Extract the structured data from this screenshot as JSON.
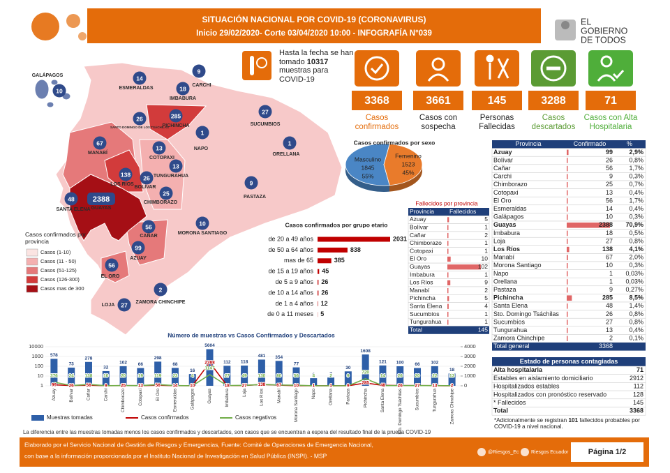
{
  "header": {
    "title": "SITUACIÓN NACIONAL POR  COVID-19 (CORONAVIRUS)",
    "subtitle": "Inicio 29/02/2020- Corte 03/04/2020 10:00  - INFOGRAFÍA N°039",
    "logo": [
      "EL",
      "GOBIERNO",
      "DE TODOS"
    ]
  },
  "tests": {
    "before": "Hasta la fecha se han tomado",
    "count": 10317,
    "after": "muestras para COVID-19"
  },
  "stats": [
    {
      "value": 3368,
      "label": "Casos confirmados",
      "color": "#e46c0a",
      "label_color": "#e46c0a"
    },
    {
      "value": 3661,
      "label": "Casos con sospecha",
      "color": "#e46c0a",
      "label_color": "#222222"
    },
    {
      "value": 145,
      "label": "Personas Fallecidas",
      "color": "#e46c0a",
      "label_color": "#222222"
    },
    {
      "value": 3288,
      "label": "Casos descartados",
      "color": "#5b9b34",
      "label_color": "#5b9b34"
    },
    {
      "value": 71,
      "label": "Casos con Alta Hospitalaria",
      "color": "#4fae3a",
      "label_color": "#4fae3a"
    }
  ],
  "map": {
    "provinces": [
      {
        "name": "GALÁPAGOS",
        "value": 10
      },
      {
        "name": "ESMERALDAS",
        "value": 14
      },
      {
        "name": "CARCHI",
        "value": 9
      },
      {
        "name": "IMBABURA",
        "value": 18
      },
      {
        "name": "SUCUMBIOS",
        "value": 27
      },
      {
        "name": "PICHINCHA",
        "value": 285
      },
      {
        "name": "SANTO DOMINGO DE LOS TSÁCHILAS",
        "value": 26
      },
      {
        "name": "MANABÍ",
        "value": 67
      },
      {
        "name": "NAPO",
        "value": 1
      },
      {
        "name": "ORELLANA",
        "value": 1
      },
      {
        "name": "COTOPAXI",
        "value": 13
      },
      {
        "name": "TUNGURAHUA",
        "value": 13
      },
      {
        "name": "LOS RÍOS",
        "value": 138
      },
      {
        "name": "BOLÍVAR",
        "value": 26
      },
      {
        "name": "SANTA ELENA",
        "value": 48
      },
      {
        "name": "GUAYAS",
        "value": 2388
      },
      {
        "name": "CHIMBORAZO",
        "value": 25
      },
      {
        "name": "PASTAZA",
        "value": 9
      },
      {
        "name": "CAÑAR",
        "value": 56
      },
      {
        "name": "MORONA SANTIAGO",
        "value": 10
      },
      {
        "name": "AZUAY",
        "value": 99
      },
      {
        "name": "EL ORO",
        "value": 56
      },
      {
        "name": "LOJA",
        "value": 27
      },
      {
        "name": "ZAMORA CHINCHIPE",
        "value": 2
      }
    ],
    "legend": {
      "title": "Casos confirmados por provincia",
      "items": [
        {
          "label": "Casos (1-10)",
          "color": "#fbe4e2"
        },
        {
          "label": "Casos (11 - 50)",
          "color": "#f4b0b0"
        },
        {
          "label": "Casos (51-125)",
          "color": "#e5797a"
        },
        {
          "label": "Casos (126-300)",
          "color": "#d23b3b"
        },
        {
          "label": "Casos mas de 300",
          "color": "#a50f15"
        }
      ]
    }
  },
  "chart_data": [
    {
      "type": "pie",
      "title": "Casos confirmados por sexo",
      "categories": [
        "Masculino",
        "Femenino"
      ],
      "values": [
        1845,
        1523
      ],
      "percent_labels": [
        "55%",
        "45%"
      ],
      "colors": [
        "#4a86c5",
        "#e97b2b"
      ]
    },
    {
      "type": "hbar",
      "title": "Casos confirmados por grupo etario",
      "categories": [
        "de 20 a 49 años",
        "de 50 a 64 años",
        "mas de 65",
        "de 15 a 19 años",
        "de 5 a 9 años",
        "de 10 a 14 años",
        "de 1 a 4 años",
        "de 0 a 11 meses"
      ],
      "values": [
        2031,
        838,
        385,
        45,
        26,
        26,
        12,
        5
      ],
      "color": "#c00000"
    },
    {
      "type": "combo",
      "title": "Número de muestras vs Casos Confirmados y Descartados",
      "categories": [
        "Azuay",
        "Bolívar",
        "Cañar",
        "Carchi",
        "Chimborazo",
        "Cotopaxi",
        "El Oro",
        "Esmeraldas",
        "Galápagos",
        "Guayas",
        "Imbabura",
        "Loja",
        "Los Ríos",
        "Manabí",
        "Morona Santiago",
        "Napo",
        "Orellana",
        "Pastaza",
        "Pichincha",
        "Santa Elena",
        "Sto. Domingo Tsáchilas",
        "Sucumbíos",
        "Tungurahua",
        "Zamora Chinchipe"
      ],
      "series": [
        {
          "name": "Muestras tomadas",
          "type": "bar",
          "color": "#2e5fa8",
          "values": [
            578,
            73,
            278,
            32,
            102,
            66,
            298,
            68,
            16,
            5604,
            112,
            118,
            481,
            354,
            77,
            6,
            7,
            30,
            1608,
            121,
            100,
            66,
            102,
            18
          ]
        },
        {
          "name": "Casos confirmados",
          "type": "line",
          "axis": "y2",
          "color": "#c00000",
          "values": [
            99,
            26,
            56,
            9,
            25,
            13,
            56,
            14,
            10,
            2388,
            18,
            27,
            138,
            67,
            10,
            1,
            1,
            9,
            285,
            48,
            26,
            27,
            13,
            2
          ]
        },
        {
          "name": "Casos negativos",
          "type": "line",
          "axis": "y2",
          "color": "#70ad47",
          "values": [
            376,
            24,
            138,
            10,
            20,
            19,
            119,
            23,
            4,
            1147,
            27,
            49,
            130,
            80,
            56,
            4,
            2,
            9,
            720,
            14,
            26,
            20,
            22,
            13
          ]
        }
      ],
      "ylog": true,
      "ylim": [
        1,
        10000
      ],
      "yticks": [
        1,
        10,
        100,
        1000,
        10000
      ],
      "y2lim": [
        0,
        4000
      ],
      "y2ticks": [
        0,
        1000,
        2000,
        3000,
        4000
      ]
    }
  ],
  "deaths_table": {
    "title": "Fallecidos por provincia",
    "columns": [
      "Provincia",
      "Fallecidos"
    ],
    "rows": [
      [
        "Azuay",
        5
      ],
      [
        "Bolívar",
        1
      ],
      [
        "Cañar",
        2
      ],
      [
        "Chimborazo",
        1
      ],
      [
        "Cotopaxi",
        1
      ],
      [
        "El Oro",
        10
      ],
      [
        "Guayas",
        102
      ],
      [
        "Imbabura",
        1
      ],
      [
        "Los Ríos",
        9
      ],
      [
        "Manabí",
        2
      ],
      [
        "Pichincha",
        5
      ],
      [
        "Santa Elena",
        4
      ],
      [
        "Sucumbíos",
        1
      ],
      [
        "Tungurahua",
        1
      ]
    ],
    "total": [
      "Total",
      145
    ]
  },
  "cases_table": {
    "columns": [
      "Provincia",
      "Confirmado",
      "%"
    ],
    "rows": [
      {
        "cells": [
          "Azuay",
          99,
          "2,9%"
        ],
        "bold": true
      },
      {
        "cells": [
          "Bolívar",
          26,
          "0,8%"
        ]
      },
      {
        "cells": [
          "Cañar",
          56,
          "1,7%"
        ]
      },
      {
        "cells": [
          "Carchi",
          9,
          "0,3%"
        ]
      },
      {
        "cells": [
          "Chimborazo",
          25,
          "0,7%"
        ]
      },
      {
        "cells": [
          "Cotopaxi",
          13,
          "0,4%"
        ]
      },
      {
        "cells": [
          "El Oro",
          56,
          "1,7%"
        ]
      },
      {
        "cells": [
          "Esmeraldas",
          14,
          "0,4%"
        ]
      },
      {
        "cells": [
          "Galápagos",
          10,
          "0,3%"
        ]
      },
      {
        "cells": [
          "Guayas",
          2388,
          "70,9%"
        ],
        "bold": true
      },
      {
        "cells": [
          "Imbabura",
          18,
          "0,5%"
        ]
      },
      {
        "cells": [
          "Loja",
          27,
          "0,8%"
        ]
      },
      {
        "cells": [
          "Los Ríos",
          138,
          "4,1%"
        ],
        "bold": true
      },
      {
        "cells": [
          "Manabí",
          67,
          "2,0%"
        ]
      },
      {
        "cells": [
          "Morona Santiago",
          10,
          "0,3%"
        ]
      },
      {
        "cells": [
          "Napo",
          1,
          "0,03%"
        ]
      },
      {
        "cells": [
          "Orellana",
          1,
          "0,03%"
        ]
      },
      {
        "cells": [
          "Pastaza",
          9,
          "0,27%"
        ]
      },
      {
        "cells": [
          "Pichincha",
          285,
          "8,5%"
        ],
        "bold": true
      },
      {
        "cells": [
          "Santa Elena",
          48,
          "1,4%"
        ]
      },
      {
        "cells": [
          "Sto. Domingo Tsáchilas",
          26,
          "0,8%"
        ]
      },
      {
        "cells": [
          "Sucumbíos",
          27,
          "0,8%"
        ]
      },
      {
        "cells": [
          "Tungurahua",
          13,
          "0,4%"
        ]
      },
      {
        "cells": [
          "Zamora Chinchipe",
          2,
          "0,1%"
        ]
      }
    ],
    "total": [
      "Total general",
      3368
    ]
  },
  "status_table": {
    "title": "Estado de personas contagiadas",
    "rows": [
      [
        "Alta hospitalaria",
        71
      ],
      [
        "Estables en aislamiento domiciliario",
        2912
      ],
      [
        "Hospitalizados estables",
        112
      ],
      [
        "Hospitalizados con pronóstico reservado",
        128
      ],
      [
        "* Fallecidos",
        145
      ]
    ],
    "total": [
      "Total",
      3368
    ]
  },
  "note": {
    "before": "*Adicionalmente se registran",
    "count": 101,
    "after": "fallecidos probables por COVID-19 a nivel nacional."
  },
  "footer": {
    "disclaimer": "La diferencia entre las muestras tomadas menos los casos confirmados y descartados, son casos que se encuentran a espera del resultado final de la prueba COVID-19",
    "credit_1": "Elaborado por el Servicio Nacional de Gestión de Riesgos y Emergencias, Fuente: Comité de Operaciones de Emergencia Nacional,",
    "credit_2": "con base a la información proporcionada por el Instituto Nacional de Investigación en Salud Pública (INSPI). - MSP",
    "twitter": "@Riesgos_Ec",
    "facebook": "Riesgos Ecuador",
    "page": "Página 1/2"
  }
}
